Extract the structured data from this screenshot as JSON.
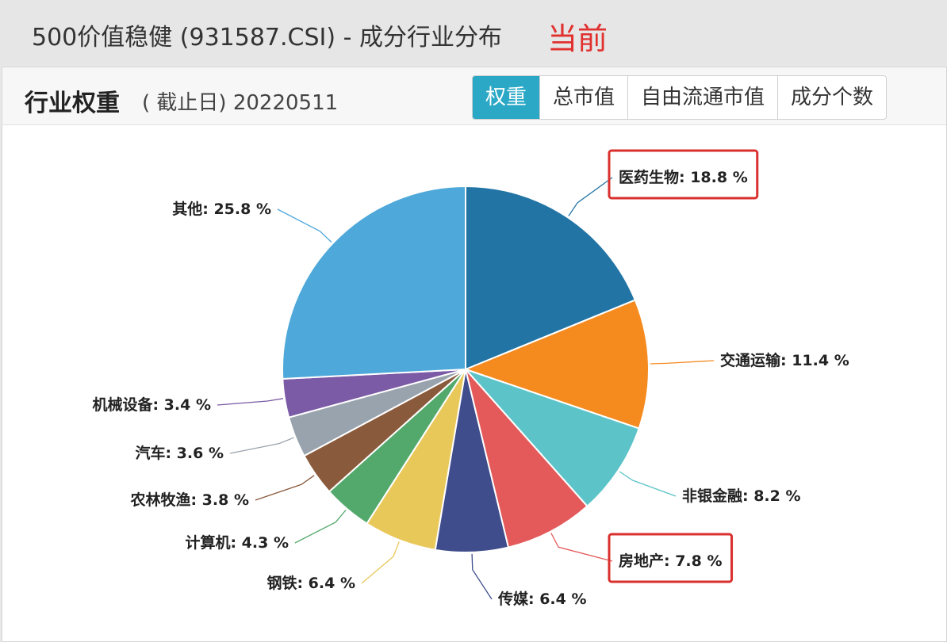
{
  "header": {
    "title": "500价值稳健 (931587.CSI) - 成分行业分布",
    "tag": "当前"
  },
  "panel": {
    "title": "行业权重",
    "date_label": "( 截止日) 20220511",
    "tabs": [
      {
        "label": "权重",
        "active": true
      },
      {
        "label": "总市值",
        "active": false
      },
      {
        "label": "自由流通市值",
        "active": false
      },
      {
        "label": "成分个数",
        "active": false
      }
    ]
  },
  "colors": {
    "accent_tab": "#2aa8c6",
    "highlight_box": "#d9302e"
  },
  "chart_data": {
    "type": "pie",
    "unit": "%",
    "slices": [
      {
        "label": "医药生物",
        "value": 18.8,
        "text": "医药生物: 18.8 %",
        "color": "#2274a5",
        "highlight": true
      },
      {
        "label": "交通运输",
        "value": 11.4,
        "text": "交通运输: 11.4 %",
        "color": "#f58a1f",
        "highlight": false
      },
      {
        "label": "非银金融",
        "value": 8.2,
        "text": "非银金融: 8.2 %",
        "color": "#5cc3c8",
        "highlight": false
      },
      {
        "label": "房地产",
        "value": 7.8,
        "text": "房地产: 7.8 %",
        "color": "#e45a5a",
        "highlight": true
      },
      {
        "label": "传媒",
        "value": 6.4,
        "text": "传媒: 6.4 %",
        "color": "#3f4d8c",
        "highlight": false
      },
      {
        "label": "钢铁",
        "value": 6.4,
        "text": "钢铁: 6.4 %",
        "color": "#e9c85a",
        "highlight": false
      },
      {
        "label": "计算机",
        "value": 4.3,
        "text": "计算机: 4.3 %",
        "color": "#53a96c",
        "highlight": false
      },
      {
        "label": "农林牧渔",
        "value": 3.8,
        "text": "农林牧渔: 3.8 %",
        "color": "#8a5a3c",
        "highlight": false
      },
      {
        "label": "汽车",
        "value": 3.6,
        "text": "汽车: 3.6 %",
        "color": "#99a3ad",
        "highlight": false
      },
      {
        "label": "机械设备",
        "value": 3.4,
        "text": "机械设备: 3.4 %",
        "color": "#7b5aa6",
        "highlight": false
      },
      {
        "label": "其他",
        "value": 25.8,
        "text": "其他: 25.8 %",
        "color": "#4fa8da",
        "highlight": false
      }
    ]
  }
}
